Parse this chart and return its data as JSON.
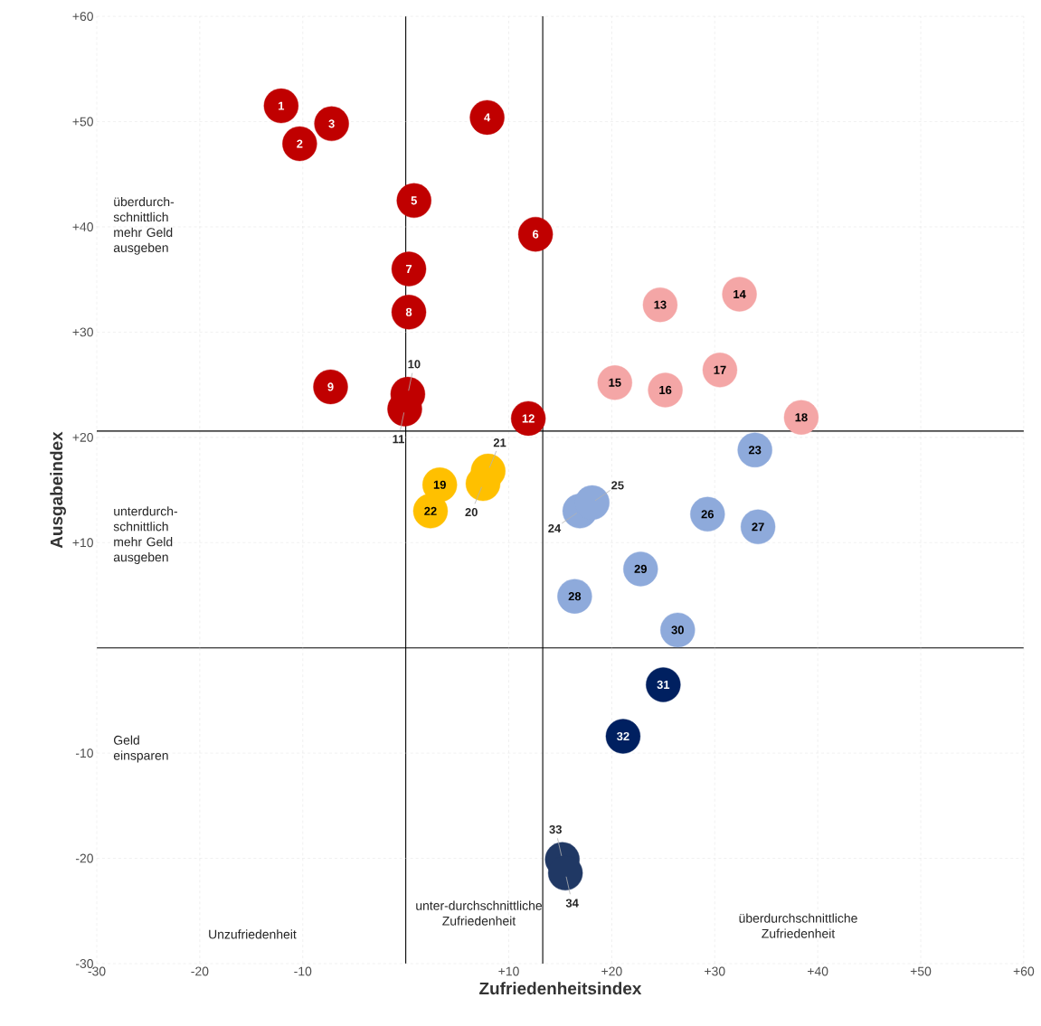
{
  "chart_data": {
    "type": "scatter",
    "xlabel": "Zufriedenheitsindex",
    "ylabel": "Ausgabeindex",
    "xlim": [
      -30,
      60
    ],
    "ylim": [
      -30,
      60
    ],
    "xticks": [
      -30,
      -20,
      -10,
      {
        "value": 0,
        "label": null
      },
      {
        "value": 10,
        "label": "+10"
      },
      {
        "value": 20,
        "label": "+20"
      },
      {
        "value": 30,
        "label": "+30"
      },
      {
        "value": 40,
        "label": "+40"
      },
      {
        "value": 50,
        "label": "+50"
      },
      {
        "value": 60,
        "label": "+60"
      }
    ],
    "yticks": [
      -30,
      -20,
      -10,
      {
        "value": 0,
        "label": null
      },
      {
        "value": 10,
        "label": "+10"
      },
      {
        "value": 20,
        "label": "+20"
      },
      {
        "value": 30,
        "label": "+30"
      },
      {
        "value": 40,
        "label": "+40"
      },
      {
        "value": 50,
        "label": "+50"
      },
      {
        "value": 60,
        "label": "+60"
      }
    ],
    "grid": true,
    "series": [
      {
        "color": "#c00000",
        "x": [
          -12.1,
          -10.3,
          -7.2,
          7.9,
          0.8,
          12.6,
          0.3,
          0.3,
          -7.3,
          0.2,
          -0.1,
          11.9
        ],
        "values": [
          51.5,
          47.9,
          49.8,
          50.4,
          42.5,
          39.3,
          36.0,
          31.9,
          24.8,
          24.1,
          22.7,
          21.8
        ]
      },
      {
        "color": "#f4a6a6",
        "x": [
          24.7,
          32.4,
          20.3,
          25.2,
          30.5,
          38.4
        ],
        "values": [
          32.6,
          33.6,
          25.2,
          24.5,
          26.4,
          21.9
        ]
      },
      {
        "color": "#ffc000",
        "x": [
          3.3,
          7.5,
          8.0,
          2.4
        ],
        "values": [
          15.5,
          15.6,
          16.8,
          13.0
        ]
      },
      {
        "color": "#8eaadb",
        "x": [
          33.9,
          16.9,
          18.1,
          29.3,
          34.2,
          16.4,
          22.8,
          26.4
        ],
        "values": [
          18.8,
          13.0,
          13.8,
          12.7,
          11.5,
          4.9,
          7.5,
          1.7
        ]
      },
      {
        "color": "#002060",
        "x": [
          25.0,
          21.1
        ],
        "values": [
          -3.5,
          -8.4
        ]
      },
      {
        "color": "#203864",
        "x": [
          15.2,
          15.5
        ],
        "values": [
          -20.1,
          -21.4
        ]
      }
    ],
    "ref_lines": [
      {
        "axis": "x",
        "value": 13.3,
        "color": "#000000"
      },
      {
        "axis": "y",
        "value": 20.6,
        "color": "#000000"
      }
    ],
    "annotations": [
      "überdurch-schnittlich mehr Geld ausgeben",
      "unterdurch-schnittlich mehr Geld ausgeben",
      "Geld einsparen",
      "Unzufriedenheit",
      "unter-durchschnittliche Zufriedenheit",
      "überdurchschnittliche Zufriedenheit",
      {
        "text": "1",
        "x": -12.1,
        "y": 51.5
      },
      {
        "text": "2",
        "x": -10.3,
        "y": 47.9
      },
      {
        "text": "3",
        "x": -7.2,
        "y": 49.8
      },
      {
        "text": "4",
        "x": 7.9,
        "y": 50.4
      },
      {
        "text": "5",
        "x": 0.8,
        "y": 42.5
      },
      {
        "text": "6",
        "x": 12.6,
        "y": 39.3
      },
      {
        "text": "7",
        "x": 0.3,
        "y": 36.0
      },
      {
        "text": "8",
        "x": 0.3,
        "y": 31.9
      },
      {
        "text": "9",
        "x": -7.3,
        "y": 24.8
      },
      {
        "text": "10",
        "x": 0.2,
        "y": 24.1
      },
      {
        "text": "11",
        "x": -0.1,
        "y": 22.7
      },
      {
        "text": "12",
        "x": 11.9,
        "y": 21.8
      },
      {
        "text": "13",
        "x": 24.7,
        "y": 32.6
      },
      {
        "text": "14",
        "x": 32.4,
        "y": 33.6
      },
      {
        "text": "15",
        "x": 20.3,
        "y": 25.2
      },
      {
        "text": "16",
        "x": 25.2,
        "y": 24.5
      },
      {
        "text": "17",
        "x": 30.5,
        "y": 26.4
      },
      {
        "text": "18",
        "x": 38.4,
        "y": 21.9
      },
      {
        "text": "19",
        "x": 3.3,
        "y": 15.5
      },
      {
        "text": "20",
        "x": 7.5,
        "y": 15.6
      },
      {
        "text": "21",
        "x": 8.0,
        "y": 16.8
      },
      {
        "text": "22",
        "x": 2.4,
        "y": 13.0
      },
      {
        "text": "23",
        "x": 33.9,
        "y": 18.8
      },
      {
        "text": "24",
        "x": 16.9,
        "y": 13.0
      },
      {
        "text": "25",
        "x": 18.1,
        "y": 13.8
      },
      {
        "text": "26",
        "x": 29.3,
        "y": 12.7
      },
      {
        "text": "27",
        "x": 34.2,
        "y": 11.5
      },
      {
        "text": "28",
        "x": 16.4,
        "y": 4.9
      },
      {
        "text": "29",
        "x": 22.8,
        "y": 7.5
      },
      {
        "text": "30",
        "x": 26.4,
        "y": 1.7
      },
      {
        "text": "31",
        "x": 25.0,
        "y": -3.5
      },
      {
        "text": "32",
        "x": 21.1,
        "y": -8.4
      },
      {
        "text": "33",
        "x": 15.2,
        "y": -20.1
      },
      {
        "text": "34",
        "x": 15.5,
        "y": -21.4
      }
    ]
  }
}
